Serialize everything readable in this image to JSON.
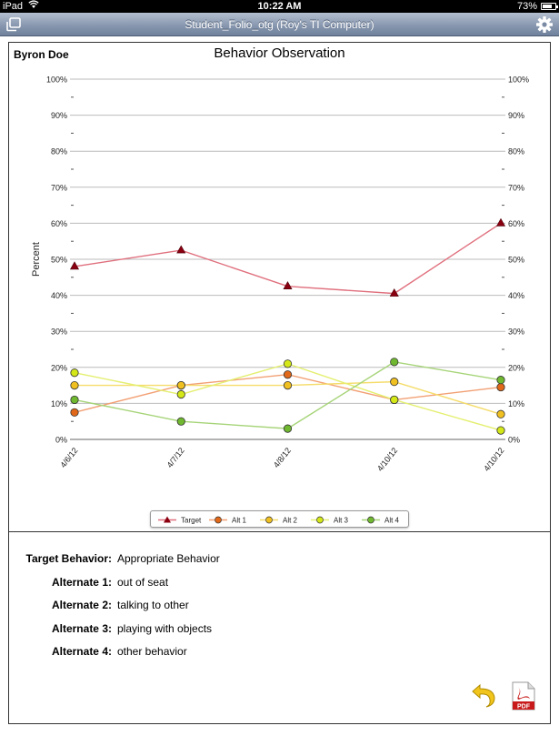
{
  "status_bar": {
    "device": "iPad",
    "time": "10:22 AM",
    "battery": "73%"
  },
  "nav_bar": {
    "title": "Student_Folio_otg (Roy's TI Computer)"
  },
  "student": {
    "name": "Byron Doe"
  },
  "chart_data": {
    "type": "line",
    "title": "Behavior Observation",
    "ylabel": "Percent",
    "xlabel": "",
    "ylim": [
      0,
      100
    ],
    "yticks": [
      "0%",
      "10%",
      "20%",
      "30%",
      "40%",
      "50%",
      "60%",
      "70%",
      "80%",
      "90%",
      "100%"
    ],
    "categories": [
      "4/6/12",
      "4/7/12",
      "4/8/12",
      "4/10/12",
      "4/10/12"
    ],
    "grid": true,
    "legend_position": "bottom",
    "series": [
      {
        "name": "Target",
        "color": "#e0707e",
        "marker": "triangle",
        "marker_color": "#8b0010",
        "values": [
          48,
          52.5,
          42.5,
          40.5,
          60
        ]
      },
      {
        "name": "Alt 1",
        "color": "#f2a074",
        "marker": "circle",
        "marker_color": "#e06818",
        "values": [
          7.5,
          15,
          18,
          11,
          14.5
        ]
      },
      {
        "name": "Alt 2",
        "color": "#f5dc6a",
        "marker": "circle",
        "marker_color": "#f0c020",
        "values": [
          15,
          15,
          15,
          16,
          7
        ]
      },
      {
        "name": "Alt 3",
        "color": "#e4ef70",
        "marker": "circle",
        "marker_color": "#d4e818",
        "values": [
          18.5,
          12.5,
          21,
          11,
          2.5
        ]
      },
      {
        "name": "Alt 4",
        "color": "#a6d478",
        "marker": "circle",
        "marker_color": "#70b830",
        "values": [
          11,
          5,
          3,
          21.5,
          16.5
        ]
      }
    ]
  },
  "behaviors": [
    {
      "label": "Target Behavior:",
      "value": "Appropriate Behavior"
    },
    {
      "label": "Alternate 1:",
      "value": "out of seat"
    },
    {
      "label": "Alternate 2:",
      "value": "talking to other"
    },
    {
      "label": "Alternate 3:",
      "value": "playing with objects"
    },
    {
      "label": "Alternate 4:",
      "value": "other behavior"
    }
  ],
  "icons": {
    "undo": "undo-arrow-icon",
    "pdf": "pdf-file-icon",
    "pdf_label": "PDF"
  }
}
